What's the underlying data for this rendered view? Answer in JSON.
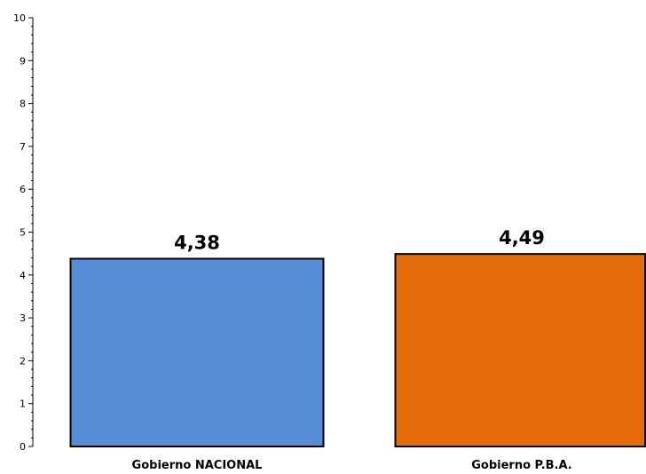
{
  "chart_data": {
    "type": "bar",
    "categories": [
      "Gobierno NACIONAL",
      "Gobierno P.B.A."
    ],
    "values": [
      4.38,
      4.49
    ],
    "value_labels": [
      "4,38",
      "4,49"
    ],
    "bar_colors": [
      "#558ed5",
      "#e46c0a"
    ],
    "title": "",
    "xlabel": "",
    "ylabel": "",
    "ylim": [
      0,
      10
    ],
    "yticks": [
      0,
      1,
      2,
      3,
      4,
      5,
      6,
      7,
      8,
      9,
      10
    ],
    "minor_ticks_per_major": 5,
    "grid": false,
    "legend": "none"
  }
}
